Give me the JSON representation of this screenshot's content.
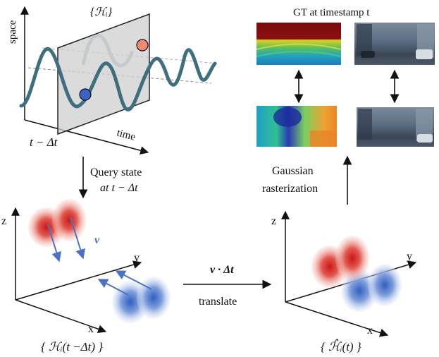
{
  "top_left": {
    "set_label": "{ℋᵢ}",
    "space_label": "space",
    "time_label": "time",
    "t_minus_label": "t − Δt"
  },
  "query": {
    "line1": "Query state",
    "line2": "at t − Δt"
  },
  "gt": {
    "title": "GT at timestamp t"
  },
  "raster": {
    "line1": "Gaussian",
    "line2": "rasterization"
  },
  "left_axes": {
    "z": "z",
    "y": "y",
    "x": "x",
    "v": "v",
    "caption": "{ ℋᵢ(t −Δt) }"
  },
  "translate": {
    "formula": "v · Δt",
    "label": "translate"
  },
  "right_axes": {
    "z": "z",
    "y": "y",
    "x": "x",
    "caption": "{ ℋ̂ᵢ(t) }"
  },
  "colors": {
    "wave": "#3f6e7e",
    "wave_faint": "#9fb6bd",
    "blue_dot": "#3d62c4",
    "orange_dot": "#f08a70",
    "red_gauss": "#d93030",
    "blue_gauss": "#4a74c8",
    "arrow_blue": "#4a72c8"
  },
  "images": [
    "depth-map-top",
    "street-photo-top",
    "depth-map-bottom",
    "street-photo-bottom"
  ]
}
